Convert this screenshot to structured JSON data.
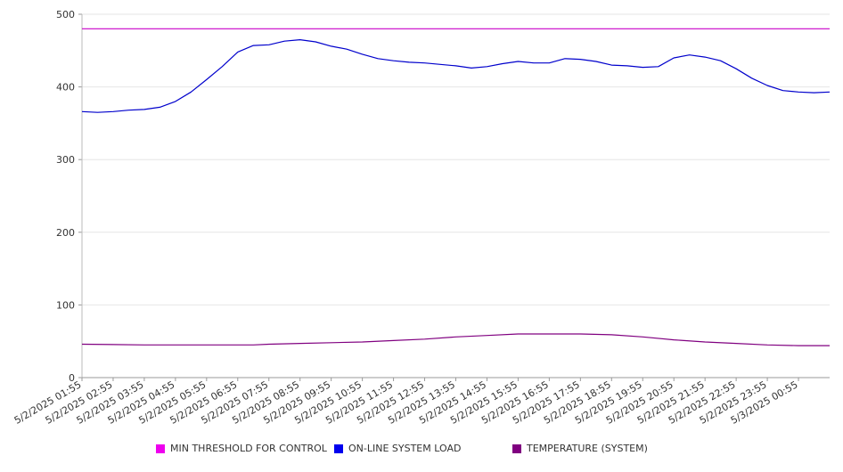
{
  "chart_data": {
    "type": "line",
    "ylim": [
      0,
      500
    ],
    "yticks": [
      0,
      100,
      200,
      300,
      400,
      500
    ],
    "grid": true,
    "legend_position": "bottom",
    "x_tick_labels": [
      "5/2/2025 01:55",
      "5/2/2025 02:55",
      "5/2/2025 03:55",
      "5/2/2025 04:55",
      "5/2/2025 05:55",
      "5/2/2025 06:55",
      "5/2/2025 07:55",
      "5/2/2025 08:55",
      "5/2/2025 09:55",
      "5/2/2025 10:55",
      "5/2/2025 11:55",
      "5/2/2025 12:55",
      "5/2/2025 13:55",
      "5/2/2025 14:55",
      "5/2/2025 15:55",
      "5/2/2025 16:55",
      "5/2/2025 17:55",
      "5/2/2025 18:55",
      "5/2/2025 19:55",
      "5/2/2025 20:55",
      "5/2/2025 21:55",
      "5/2/2025 22:55",
      "5/2/2025 23:55",
      "5/3/2025 00:55"
    ],
    "x_start": "5/2/2025 01:55",
    "x_end": "5/3/2025 01:55",
    "series": [
      {
        "name": "MIN THRESHOLD FOR CONTROL",
        "color": "#c800c8",
        "points": [
          {
            "x": "5/2/2025 01:55",
            "y": 480
          },
          {
            "x": "5/3/2025 01:55",
            "y": 480
          }
        ]
      },
      {
        "name": "ON-LINE SYSTEM LOAD",
        "color": "#0000cc",
        "points": [
          {
            "x": "5/2/2025 01:55",
            "y": 366
          },
          {
            "x": "5/2/2025 02:25",
            "y": 365
          },
          {
            "x": "5/2/2025 02:55",
            "y": 366
          },
          {
            "x": "5/2/2025 03:25",
            "y": 368
          },
          {
            "x": "5/2/2025 03:55",
            "y": 369
          },
          {
            "x": "5/2/2025 04:25",
            "y": 372
          },
          {
            "x": "5/2/2025 04:55",
            "y": 380
          },
          {
            "x": "5/2/2025 05:25",
            "y": 393
          },
          {
            "x": "5/2/2025 05:55",
            "y": 410
          },
          {
            "x": "5/2/2025 06:25",
            "y": 428
          },
          {
            "x": "5/2/2025 06:55",
            "y": 448
          },
          {
            "x": "5/2/2025 07:25",
            "y": 457
          },
          {
            "x": "5/2/2025 07:55",
            "y": 458
          },
          {
            "x": "5/2/2025 08:25",
            "y": 463
          },
          {
            "x": "5/2/2025 08:55",
            "y": 465
          },
          {
            "x": "5/2/2025 09:25",
            "y": 462
          },
          {
            "x": "5/2/2025 09:55",
            "y": 456
          },
          {
            "x": "5/2/2025 10:25",
            "y": 452
          },
          {
            "x": "5/2/2025 10:55",
            "y": 445
          },
          {
            "x": "5/2/2025 11:25",
            "y": 439
          },
          {
            "x": "5/2/2025 11:55",
            "y": 436
          },
          {
            "x": "5/2/2025 12:25",
            "y": 434
          },
          {
            "x": "5/2/2025 12:55",
            "y": 433
          },
          {
            "x": "5/2/2025 13:25",
            "y": 431
          },
          {
            "x": "5/2/2025 13:55",
            "y": 429
          },
          {
            "x": "5/2/2025 14:25",
            "y": 426
          },
          {
            "x": "5/2/2025 14:55",
            "y": 428
          },
          {
            "x": "5/2/2025 15:25",
            "y": 432
          },
          {
            "x": "5/2/2025 15:55",
            "y": 435
          },
          {
            "x": "5/2/2025 16:25",
            "y": 433
          },
          {
            "x": "5/2/2025 16:55",
            "y": 433
          },
          {
            "x": "5/2/2025 17:25",
            "y": 439
          },
          {
            "x": "5/2/2025 17:55",
            "y": 438
          },
          {
            "x": "5/2/2025 18:25",
            "y": 435
          },
          {
            "x": "5/2/2025 18:55",
            "y": 430
          },
          {
            "x": "5/2/2025 19:25",
            "y": 429
          },
          {
            "x": "5/2/2025 19:55",
            "y": 427
          },
          {
            "x": "5/2/2025 20:25",
            "y": 428
          },
          {
            "x": "5/2/2025 20:55",
            "y": 440
          },
          {
            "x": "5/2/2025 21:25",
            "y": 444
          },
          {
            "x": "5/2/2025 21:55",
            "y": 441
          },
          {
            "x": "5/2/2025 22:25",
            "y": 436
          },
          {
            "x": "5/2/2025 22:55",
            "y": 425
          },
          {
            "x": "5/2/2025 23:25",
            "y": 412
          },
          {
            "x": "5/2/2025 23:55",
            "y": 402
          },
          {
            "x": "5/3/2025 00:25",
            "y": 395
          },
          {
            "x": "5/3/2025 00:55",
            "y": 393
          },
          {
            "x": "5/3/2025 01:25",
            "y": 392
          },
          {
            "x": "5/3/2025 01:55",
            "y": 393
          }
        ]
      },
      {
        "name": "TEMPERATURE (SYSTEM)",
        "color": "#800080",
        "points": [
          {
            "x": "5/2/2025 01:55",
            "y": 46
          },
          {
            "x": "5/2/2025 03:55",
            "y": 45
          },
          {
            "x": "5/2/2025 05:55",
            "y": 45
          },
          {
            "x": "5/2/2025 07:25",
            "y": 45
          },
          {
            "x": "5/2/2025 07:55",
            "y": 46
          },
          {
            "x": "5/2/2025 08:55",
            "y": 47
          },
          {
            "x": "5/2/2025 09:55",
            "y": 48
          },
          {
            "x": "5/2/2025 10:55",
            "y": 49
          },
          {
            "x": "5/2/2025 11:55",
            "y": 51
          },
          {
            "x": "5/2/2025 12:55",
            "y": 53
          },
          {
            "x": "5/2/2025 13:55",
            "y": 56
          },
          {
            "x": "5/2/2025 14:55",
            "y": 58
          },
          {
            "x": "5/2/2025 15:55",
            "y": 60
          },
          {
            "x": "5/2/2025 16:55",
            "y": 60
          },
          {
            "x": "5/2/2025 17:55",
            "y": 60
          },
          {
            "x": "5/2/2025 18:55",
            "y": 59
          },
          {
            "x": "5/2/2025 19:55",
            "y": 56
          },
          {
            "x": "5/2/2025 20:55",
            "y": 52
          },
          {
            "x": "5/2/2025 21:55",
            "y": 49
          },
          {
            "x": "5/2/2025 22:55",
            "y": 47
          },
          {
            "x": "5/2/2025 23:55",
            "y": 45
          },
          {
            "x": "5/3/2025 00:55",
            "y": 44
          },
          {
            "x": "5/3/2025 01:55",
            "y": 44
          }
        ]
      }
    ]
  }
}
